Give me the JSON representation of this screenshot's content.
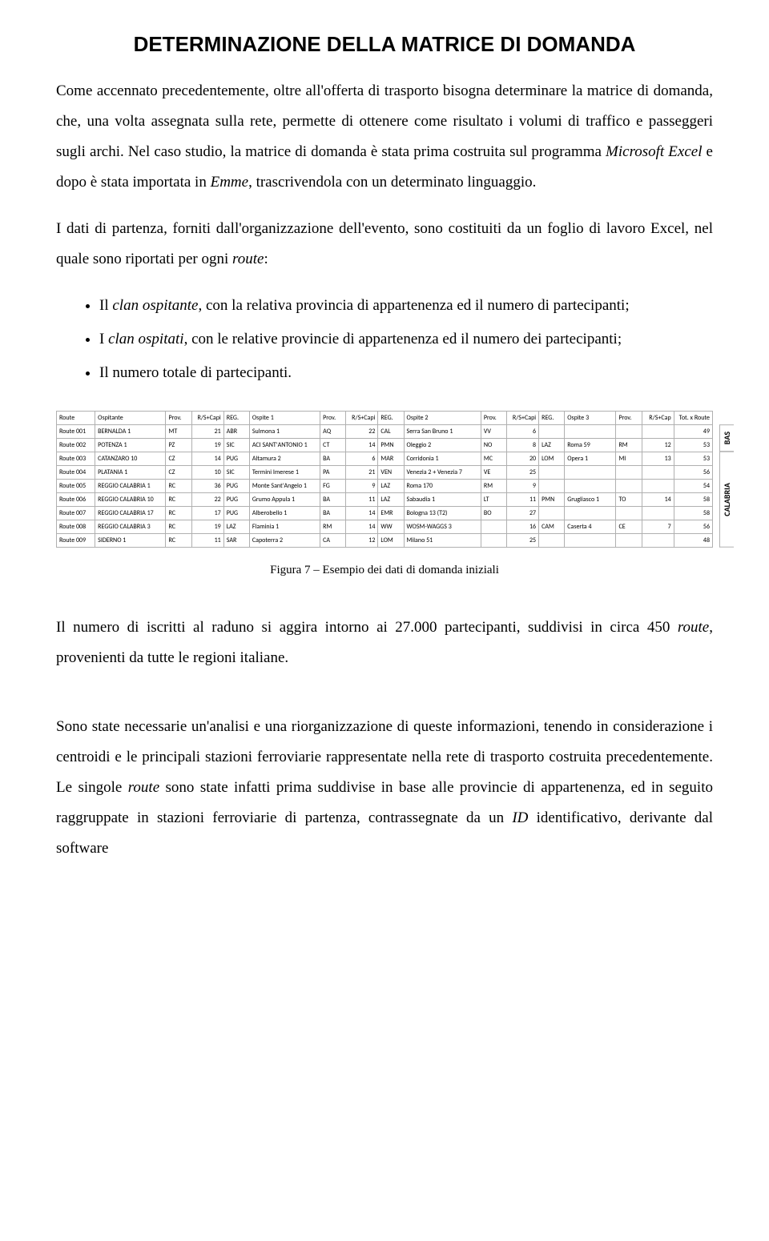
{
  "title": "DETERMINAZIONE DELLA MATRICE DI DOMANDA",
  "p1_a": "Come accennato precedentemente, oltre all'offerta di trasporto bisogna determinare la matrice di domanda, che, una volta assegnata sulla rete, permette di ottenere come risultato i volumi di traffico e passeggeri sugli archi. Nel caso studio, la matrice di domanda è stata prima costruita sul programma ",
  "p1_i1": "Microsoft Excel",
  "p1_b": " e dopo è stata importata in ",
  "p1_i2": "Emme",
  "p1_c": ", trascrivendola con un determinato linguaggio.",
  "p2_a": "I dati di partenza, forniti dall'organizzazione dell'evento, sono costituiti da un foglio di lavoro Excel, nel quale sono riportati per ogni ",
  "p2_i1": "route",
  "p2_b": ":",
  "b1_a": "Il ",
  "b1_i": "clan ospitante",
  "b1_b": ", con la relativa provincia di appartenenza ed il numero di partecipanti;",
  "b2_a": "I ",
  "b2_i": "clan ospitati",
  "b2_b": ", con le relative provincie di appartenenza ed il numero dei partecipanti;",
  "b3": "Il numero totale di partecipanti.",
  "table": {
    "columns": [
      "Route",
      "Ospitante",
      "Prov.",
      "R/S+Capi",
      "REG.",
      "Ospite 1",
      "Prov.",
      "R/S+Capi",
      "REG.",
      "Ospite 2",
      "Prov.",
      "R/S+Capi",
      "REG.",
      "Ospite 3",
      "Prov.",
      "R/S+Cap",
      "Tot. x Route"
    ],
    "col_widths": [
      "6%",
      "11%",
      "4%",
      "5%",
      "4%",
      "11%",
      "4%",
      "5%",
      "4%",
      "12%",
      "4%",
      "5%",
      "4%",
      "8%",
      "4%",
      "5%",
      "6%"
    ],
    "num_cols": [
      3,
      7,
      11,
      15,
      16
    ],
    "rows": [
      [
        "Route 001",
        "BERNALDA 1",
        "MT",
        "21",
        "ABR",
        "Sulmona 1",
        "AQ",
        "22",
        "CAL",
        "Serra San Bruno 1",
        "VV",
        "6",
        "",
        "",
        "",
        "",
        "49"
      ],
      [
        "Route 002",
        "POTENZA 1",
        "PZ",
        "19",
        "SIC",
        "ACI SANT'ANTONIO 1",
        "CT",
        "14",
        "PMN",
        "Oleggio 2",
        "NO",
        "8",
        "LAZ",
        "Roma 59",
        "RM",
        "12",
        "53"
      ],
      [
        "Route 003",
        "CATANZARO 10",
        "CZ",
        "14",
        "PUG",
        "Altamura 2",
        "BA",
        "6",
        "MAR",
        "Corridonia 1",
        "MC",
        "20",
        "LOM",
        "Opera 1",
        "MI",
        "13",
        "53"
      ],
      [
        "Route 004",
        "PLATANIA 1",
        "CZ",
        "10",
        "SIC",
        "Termini Imerese 1",
        "PA",
        "21",
        "VEN",
        "Venezia 2 + Venezia 7",
        "VE",
        "25",
        "",
        "",
        "",
        "",
        "56"
      ],
      [
        "Route 005",
        "REGGIO CALABRIA 1",
        "RC",
        "36",
        "PUG",
        "Monte Sant'Angelo 1",
        "FG",
        "9",
        "LAZ",
        "Roma 170",
        "RM",
        "9",
        "",
        "",
        "",
        "",
        "54"
      ],
      [
        "Route 006",
        "REGGIO CALABRIA 10",
        "RC",
        "22",
        "PUG",
        "Grumo Appula 1",
        "BA",
        "11",
        "LAZ",
        "Sabaudia 1",
        "LT",
        "11",
        "PMN",
        "Grugliasco 1",
        "TO",
        "14",
        "58"
      ],
      [
        "Route 007",
        "REGGIO CALABRIA 17",
        "RC",
        "17",
        "PUG",
        "Alberobello 1",
        "BA",
        "14",
        "EMR",
        "Bologna 13 (T2)",
        "BO",
        "27",
        "",
        "",
        "",
        "",
        "58"
      ],
      [
        "Route 008",
        "REGGIO CALABRIA 3",
        "RC",
        "19",
        "LAZ",
        "Flaminia 1",
        "RM",
        "14",
        "WW",
        "WOSM-WAGGS 3",
        "",
        "16",
        "CAM",
        "Caserta 4",
        "CE",
        "7",
        "56"
      ],
      [
        "Route 009",
        "SIDERNO 1",
        "RC",
        "11",
        "SAR",
        "Capoterra 2",
        "CA",
        "12",
        "LOM",
        "Milano 51",
        "",
        "25",
        "",
        "",
        "",
        "",
        "48"
      ]
    ],
    "side_labels": [
      {
        "text": "BAS",
        "rows": 2
      },
      {
        "text": "CALABRIA",
        "rows": 7
      }
    ]
  },
  "caption": "Figura 7 – Esempio dei dati di domanda iniziali",
  "p3_a": "Il numero di iscritti al raduno si aggira intorno ai 27.000 partecipanti, suddivisi in circa 450 ",
  "p3_i": "route",
  "p3_b": ", provenienti da tutte le regioni italiane.",
  "p4_a": "Sono state necessarie un'analisi e una riorganizzazione di queste informazioni, tenendo in considerazione i centroidi e le principali stazioni ferroviarie rappresentate nella rete di trasporto costruita precedentemente.  Le singole ",
  "p4_i1": "route",
  "p4_b": " sono state infatti prima suddivise in base alle provincie di appartenenza, ed in seguito raggruppate in stazioni ferroviarie di partenza, contrassegnate da un ",
  "p4_i2": "ID",
  "p4_c": " identificativo, derivante dal software"
}
